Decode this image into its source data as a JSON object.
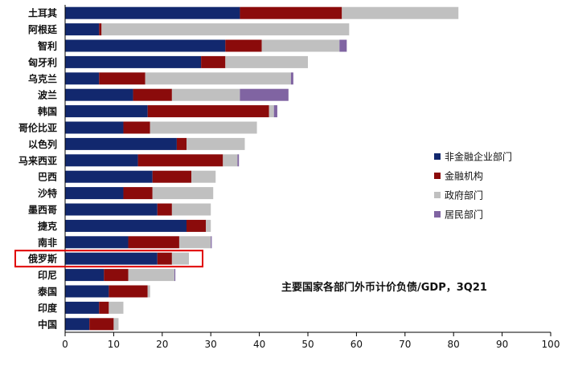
{
  "chart_data": {
    "type": "bar",
    "orientation": "horizontal",
    "stacked": true,
    "title": "主要国家各部门外币计价负债/GDP，3Q21",
    "xlabel": "",
    "ylabel": "",
    "xlim": [
      0,
      100
    ],
    "x_ticks": [
      0,
      10,
      20,
      30,
      40,
      50,
      60,
      70,
      80,
      90,
      100
    ],
    "grid": false,
    "legend_position": "right",
    "highlighted_category": "俄罗斯",
    "categories": [
      "土耳其",
      "阿根廷",
      "智利",
      "匈牙利",
      "乌克兰",
      "波兰",
      "韩国",
      "哥伦比亚",
      "以色列",
      "马来西亚",
      "巴西",
      "沙特",
      "墨西哥",
      "捷克",
      "南非",
      "俄罗斯",
      "印尼",
      "泰国",
      "印度",
      "中国"
    ],
    "series": [
      {
        "name": "非金融企业部门",
        "color": "#12286e",
        "values": [
          36,
          7,
          33,
          28,
          7,
          14,
          17,
          12,
          23,
          15,
          18,
          12,
          19,
          25,
          13,
          19,
          8,
          9,
          7,
          5
        ]
      },
      {
        "name": "金融机构",
        "color": "#8b0b0b",
        "values": [
          21,
          0.5,
          7.5,
          5,
          9.5,
          8,
          25,
          5.5,
          2,
          17.5,
          8,
          6,
          3,
          4,
          10.5,
          3,
          5,
          8,
          2,
          5
        ]
      },
      {
        "name": "政府部门",
        "color": "#c0c0c0",
        "values": [
          24,
          51,
          16,
          17,
          30,
          14,
          1,
          22,
          12,
          3,
          5,
          12.5,
          8,
          1,
          6.5,
          3.5,
          9.5,
          0.5,
          3,
          1
        ]
      },
      {
        "name": "居民部门",
        "color": "#8064a2",
        "values": [
          0,
          0,
          1.5,
          0,
          0.5,
          10,
          0.7,
          0,
          0,
          0.3,
          0,
          0,
          0,
          0,
          0.2,
          0,
          0.2,
          0,
          0,
          0
        ]
      }
    ]
  }
}
